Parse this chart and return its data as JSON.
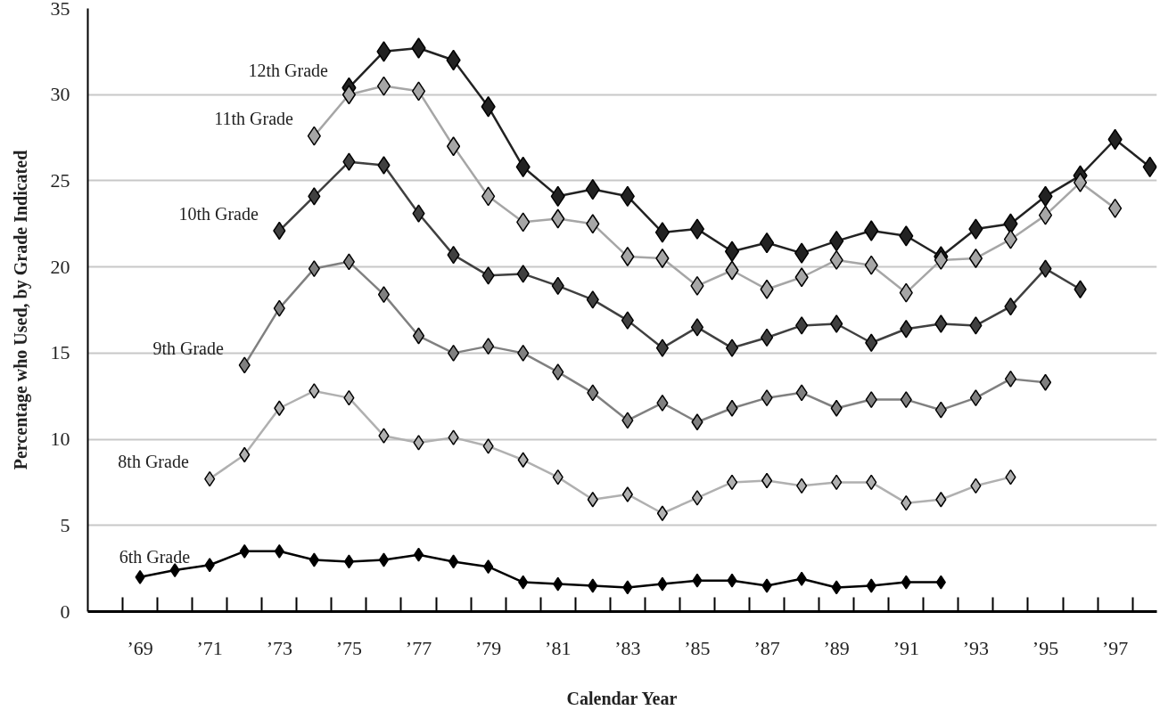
{
  "chart_data": {
    "type": "line",
    "xlabel": "Calendar Year",
    "ylabel": "Percentage who Used, by Grade Indicated",
    "xlim": [
      1967.5,
      1998.2
    ],
    "ylim": [
      0,
      35
    ],
    "xticks": [
      {
        "value": 1968.5,
        "label": null
      },
      {
        "value": 1969,
        "label": "’69"
      },
      {
        "value": 1969.5,
        "label": null
      },
      {
        "value": 1970.5,
        "label": null
      },
      {
        "value": 1971,
        "label": "’71"
      },
      {
        "value": 1971.5,
        "label": null
      },
      {
        "value": 1972.5,
        "label": null
      },
      {
        "value": 1973,
        "label": "’73"
      },
      {
        "value": 1973.5,
        "label": null
      },
      {
        "value": 1974.5,
        "label": null
      },
      {
        "value": 1975,
        "label": "’75"
      },
      {
        "value": 1975.5,
        "label": null
      },
      {
        "value": 1976.5,
        "label": null
      },
      {
        "value": 1977,
        "label": "’77"
      },
      {
        "value": 1977.5,
        "label": null
      },
      {
        "value": 1978.5,
        "label": null
      },
      {
        "value": 1979,
        "label": "’79"
      },
      {
        "value": 1979.5,
        "label": null
      },
      {
        "value": 1980.5,
        "label": null
      },
      {
        "value": 1981,
        "label": "’81"
      },
      {
        "value": 1981.5,
        "label": null
      },
      {
        "value": 1982.5,
        "label": null
      },
      {
        "value": 1983,
        "label": "’83"
      },
      {
        "value": 1983.5,
        "label": null
      },
      {
        "value": 1984.5,
        "label": null
      },
      {
        "value": 1985,
        "label": "’85"
      },
      {
        "value": 1985.5,
        "label": null
      },
      {
        "value": 1986.5,
        "label": null
      },
      {
        "value": 1987,
        "label": "’87"
      },
      {
        "value": 1987.5,
        "label": null
      },
      {
        "value": 1988.5,
        "label": null
      },
      {
        "value": 1989,
        "label": "’89"
      },
      {
        "value": 1989.5,
        "label": null
      },
      {
        "value": 1990.5,
        "label": null
      },
      {
        "value": 1991,
        "label": "’91"
      },
      {
        "value": 1991.5,
        "label": null
      },
      {
        "value": 1992.5,
        "label": null
      },
      {
        "value": 1993,
        "label": "’93"
      },
      {
        "value": 1993.5,
        "label": null
      },
      {
        "value": 1994.5,
        "label": null
      },
      {
        "value": 1995,
        "label": "’95"
      },
      {
        "value": 1995.5,
        "label": null
      },
      {
        "value": 1996.5,
        "label": null
      },
      {
        "value": 1997,
        "label": "’97"
      },
      {
        "value": 1997.5,
        "label": null
      }
    ],
    "yticks": [
      0,
      5,
      10,
      15,
      20,
      25,
      30,
      35
    ],
    "grid": "y",
    "legend": false,
    "marker": "diamond",
    "line_style": "solid",
    "series": [
      {
        "name": "12th Grade",
        "color": "#222222",
        "x": [
          1975,
          1976,
          1977,
          1978,
          1979,
          1980,
          1981,
          1982,
          1983,
          1984,
          1985,
          1986,
          1987,
          1988,
          1989,
          1990,
          1991,
          1992,
          1993,
          1994,
          1995,
          1996,
          1997,
          1998
        ],
        "values": [
          30.4,
          32.5,
          32.7,
          32.0,
          29.3,
          25.8,
          24.1,
          24.5,
          24.1,
          22.0,
          22.2,
          20.9,
          21.4,
          20.8,
          21.5,
          22.1,
          21.8,
          20.6,
          22.2,
          22.5,
          24.1,
          25.3,
          27.4,
          25.8
        ]
      },
      {
        "name": "11th Grade",
        "color": "#a6a6a6",
        "x": [
          1974,
          1975,
          1976,
          1977,
          1978,
          1979,
          1980,
          1981,
          1982,
          1983,
          1984,
          1985,
          1986,
          1987,
          1988,
          1989,
          1990,
          1991,
          1992,
          1993,
          1994,
          1995,
          1996,
          1997
        ],
        "values": [
          27.6,
          30.0,
          30.5,
          30.2,
          27.0,
          24.1,
          22.6,
          22.8,
          22.5,
          20.6,
          20.5,
          18.9,
          19.8,
          18.7,
          19.4,
          20.4,
          20.1,
          18.5,
          20.4,
          20.5,
          21.6,
          23.0,
          24.9,
          23.4
        ]
      },
      {
        "name": "10th Grade",
        "color": "#404040",
        "x": [
          1973,
          1974,
          1975,
          1976,
          1977,
          1978,
          1979,
          1980,
          1981,
          1982,
          1983,
          1984,
          1985,
          1986,
          1987,
          1988,
          1989,
          1990,
          1991,
          1992,
          1993,
          1994,
          1995,
          1996
        ],
        "values": [
          22.1,
          24.1,
          26.1,
          25.9,
          23.1,
          20.7,
          19.5,
          19.6,
          18.9,
          18.1,
          16.9,
          15.3,
          16.5,
          15.3,
          15.9,
          16.6,
          16.7,
          15.6,
          16.4,
          16.7,
          16.6,
          17.7,
          19.9,
          18.7
        ]
      },
      {
        "name": "9th Grade",
        "color": "#808080",
        "x": [
          1972,
          1973,
          1974,
          1975,
          1976,
          1977,
          1978,
          1979,
          1980,
          1981,
          1982,
          1983,
          1984,
          1985,
          1986,
          1987,
          1988,
          1989,
          1990,
          1991,
          1992,
          1993,
          1994,
          1995
        ],
        "values": [
          14.3,
          17.6,
          19.9,
          20.3,
          18.4,
          16.0,
          15.0,
          15.4,
          15.0,
          13.9,
          12.7,
          11.1,
          12.1,
          11.0,
          11.8,
          12.4,
          12.7,
          11.8,
          12.3,
          12.3,
          11.7,
          12.4,
          13.5,
          13.3
        ]
      },
      {
        "name": "8th Grade",
        "color": "#b0b0b0",
        "x": [
          1971,
          1972,
          1973,
          1974,
          1975,
          1976,
          1977,
          1978,
          1979,
          1980,
          1981,
          1982,
          1983,
          1984,
          1985,
          1986,
          1987,
          1988,
          1989,
          1990,
          1991,
          1992,
          1993,
          1994
        ],
        "values": [
          7.7,
          9.1,
          11.8,
          12.8,
          12.4,
          10.2,
          9.8,
          10.1,
          9.6,
          8.8,
          7.8,
          6.5,
          6.8,
          5.7,
          6.6,
          7.5,
          7.6,
          7.3,
          7.5,
          7.5,
          6.3,
          6.5,
          7.3,
          7.8
        ]
      },
      {
        "name": "6th Grade",
        "color": "#000000",
        "x": [
          1969,
          1970,
          1971,
          1972,
          1973,
          1974,
          1975,
          1976,
          1977,
          1978,
          1979,
          1980,
          1981,
          1982,
          1983,
          1984,
          1985,
          1986,
          1987,
          1988,
          1989,
          1990,
          1991,
          1992
        ],
        "values": [
          2.0,
          2.4,
          2.7,
          3.5,
          3.5,
          3.0,
          2.9,
          3.0,
          3.3,
          2.9,
          2.6,
          1.7,
          1.6,
          1.5,
          1.4,
          1.6,
          1.8,
          1.8,
          1.5,
          1.9,
          1.4,
          1.5,
          1.7,
          1.7
        ]
      }
    ]
  }
}
